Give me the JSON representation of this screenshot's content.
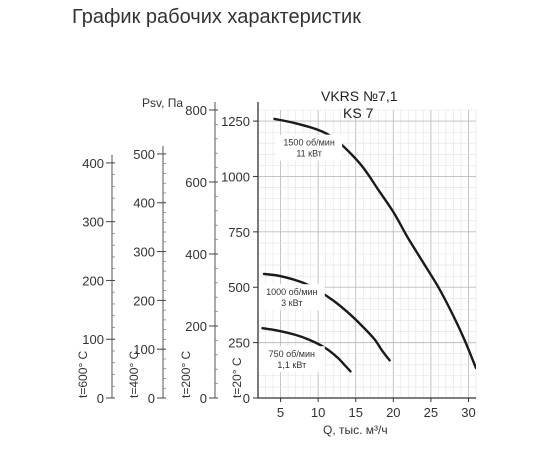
{
  "title": "График рабочих характеристик",
  "chart_data": {
    "type": "line",
    "model": "VKRS №7,1",
    "submodel": "KS 7",
    "xlabel": "Q, тыс. м³/ч",
    "ylabel": "Psv, Па",
    "x_ticks": [
      5,
      10,
      15,
      20,
      25,
      30
    ],
    "xlim": [
      2,
      31
    ],
    "y_ticks": [
      0,
      250,
      500,
      750,
      1000,
      1250
    ],
    "ylim": [
      0,
      1300
    ],
    "grid": true,
    "series": [
      {
        "name": "1500 об/мин 11 кВт",
        "label_lines": [
          "1500 об/мин",
          "11 кВт"
        ],
        "points": [
          [
            4.2,
            1260
          ],
          [
            7,
            1240
          ],
          [
            10,
            1210
          ],
          [
            12,
            1175
          ],
          [
            14,
            1115
          ],
          [
            16,
            1040
          ],
          [
            18,
            940
          ],
          [
            20,
            840
          ],
          [
            22,
            720
          ],
          [
            24,
            610
          ],
          [
            26,
            500
          ],
          [
            28,
            370
          ],
          [
            29.5,
            260
          ],
          [
            31,
            135
          ]
        ]
      },
      {
        "name": "1000 об/мин 3 кВт",
        "label_lines": [
          "1000 об/мин",
          "3 кВт"
        ],
        "points": [
          [
            2.8,
            560
          ],
          [
            5,
            550
          ],
          [
            8,
            520
          ],
          [
            10,
            485
          ],
          [
            12,
            440
          ],
          [
            14,
            385
          ],
          [
            16,
            320
          ],
          [
            17.5,
            265
          ],
          [
            18.5,
            215
          ],
          [
            19.5,
            170
          ]
        ]
      },
      {
        "name": "750 об/мин 1,1 кВт",
        "label_lines": [
          "750 об/мин",
          "1,1 кВт"
        ],
        "points": [
          [
            2.6,
            315
          ],
          [
            4.5,
            305
          ],
          [
            7,
            285
          ],
          [
            9,
            260
          ],
          [
            11,
            225
          ],
          [
            12.5,
            185
          ],
          [
            13.5,
            150
          ],
          [
            14.3,
            120
          ]
        ]
      }
    ],
    "secondary_axes": [
      {
        "name": "t=600° C",
        "ticks": [
          0,
          100,
          200,
          300,
          400
        ],
        "max_val": 490
      },
      {
        "name": "t=400° C",
        "ticks": [
          0,
          100,
          200,
          300,
          400,
          500
        ],
        "max_val": 590
      },
      {
        "name": "t=200° C",
        "ticks": [
          0,
          200,
          400,
          600,
          800
        ],
        "max_val": 800
      },
      {
        "name": "t=20° C",
        "ticks": [
          0,
          250,
          500,
          750,
          1000,
          1250
        ],
        "max_val": 1300
      }
    ]
  }
}
